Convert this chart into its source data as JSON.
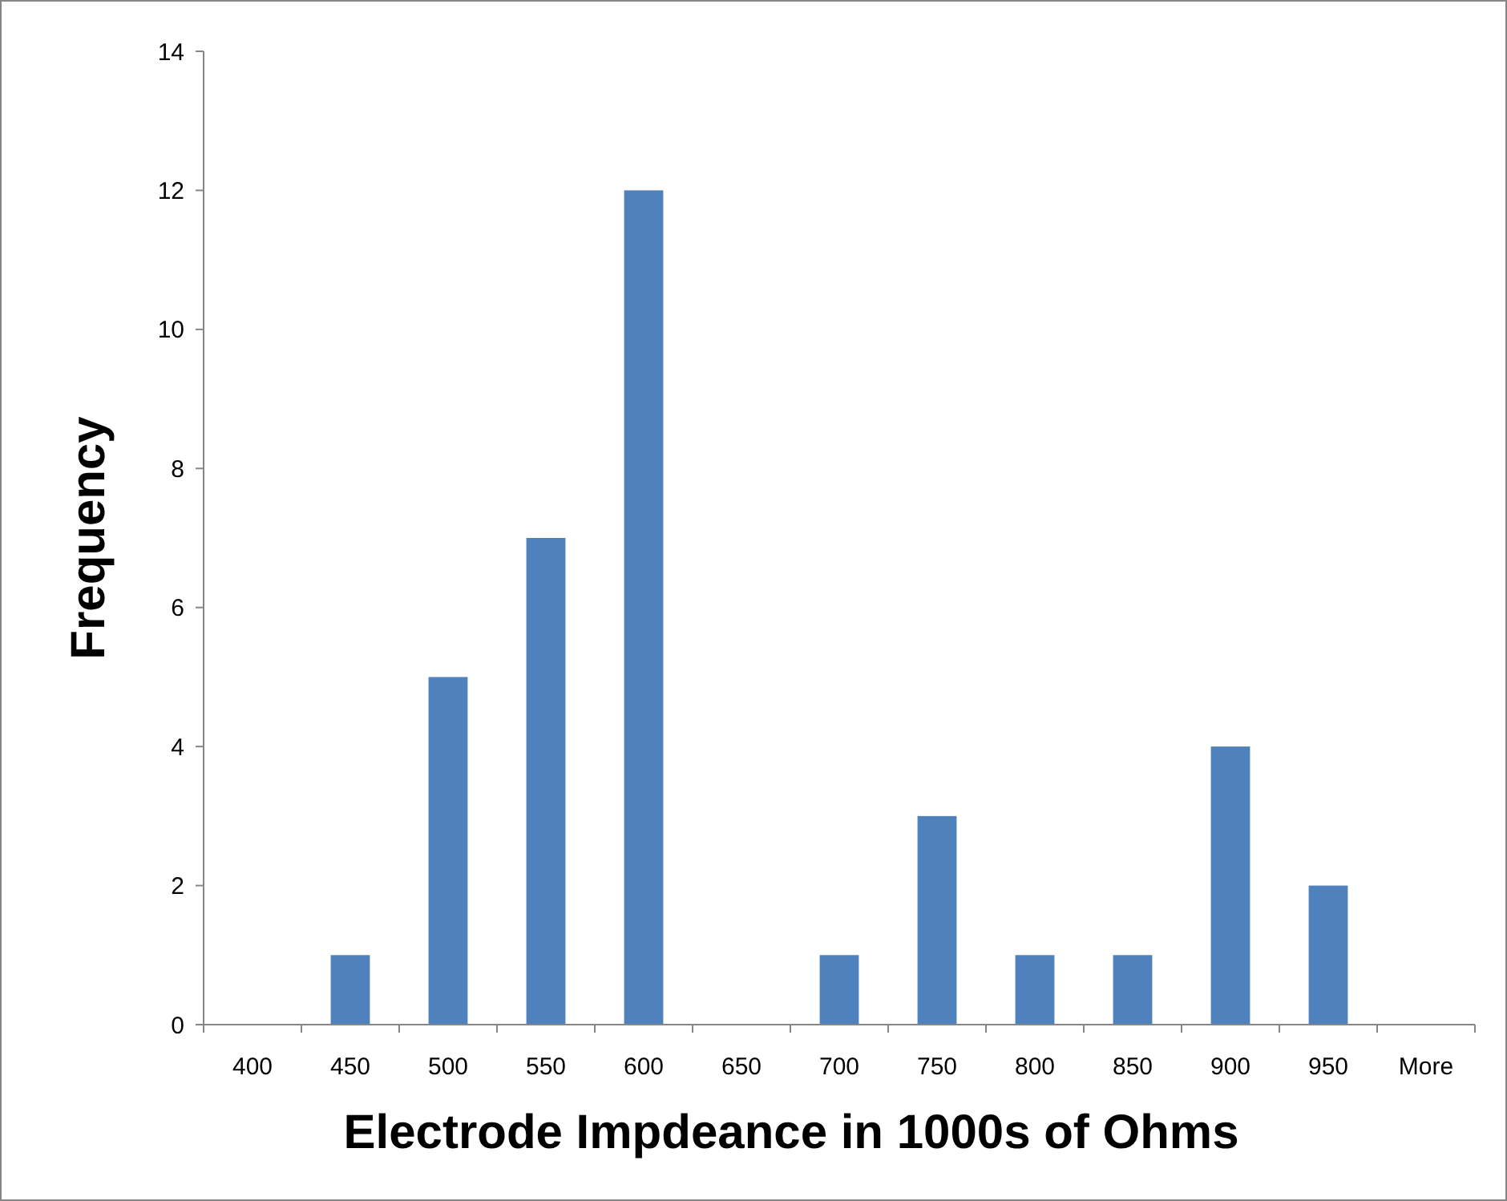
{
  "chart_data": {
    "type": "bar",
    "xlabel": "Electrode Impdeance in 1000s of Ohms",
    "ylabel": "Frequency",
    "categories": [
      "400",
      "450",
      "500",
      "550",
      "600",
      "650",
      "700",
      "750",
      "800",
      "850",
      "900",
      "950",
      "More"
    ],
    "values": [
      0,
      1,
      5,
      7,
      12,
      0,
      1,
      3,
      1,
      1,
      4,
      2,
      0
    ],
    "color": "#4f81bd",
    "ylim": [
      0,
      14
    ],
    "yticks": [
      0,
      2,
      4,
      6,
      8,
      10,
      12,
      14
    ],
    "grid": false
  }
}
